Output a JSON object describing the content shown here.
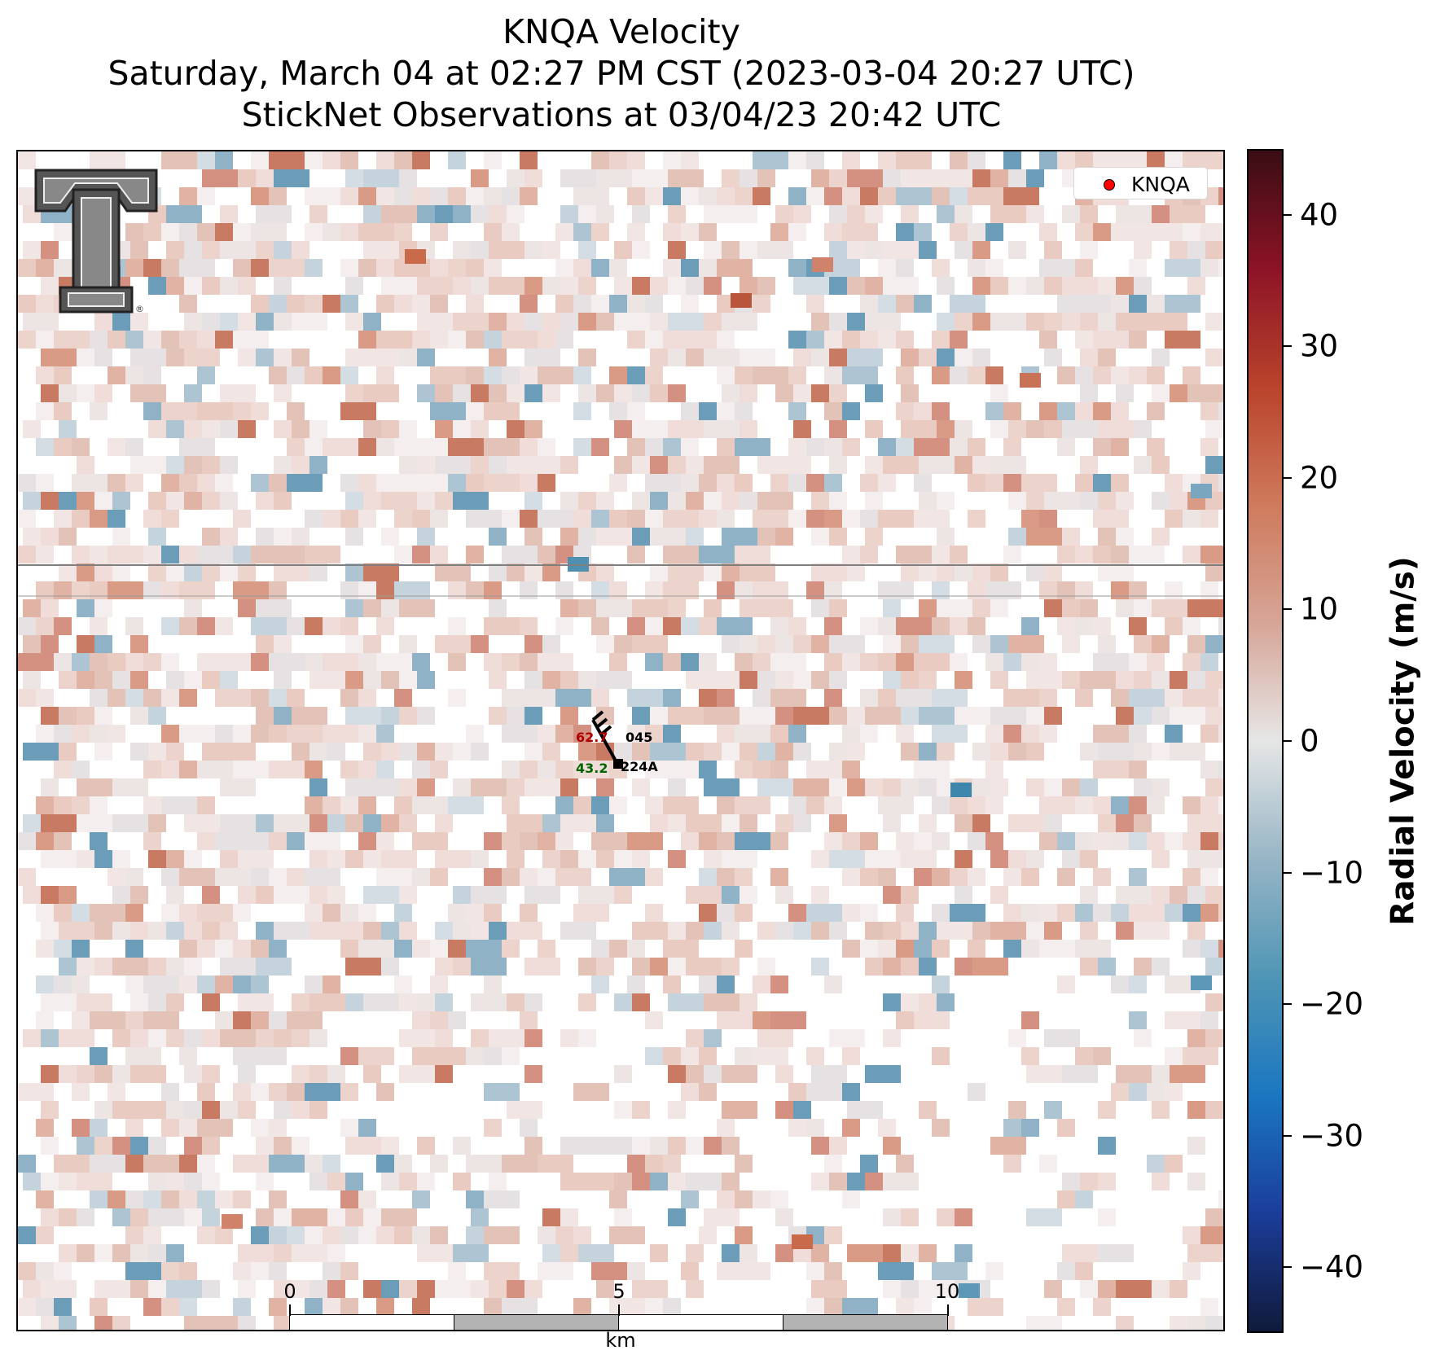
{
  "title": {
    "line1": "KNQA Velocity",
    "line2": "Saturday, March 04 at 02:27 PM CST (2023-03-04 20:27 UTC)",
    "line3": "StickNet Observations at 03/04/23 20:42 UTC"
  },
  "legend": {
    "label": "KNQA",
    "marker_color": "#ff0000"
  },
  "logo": {
    "name": "Texas Tech double-T logo",
    "mark": "®"
  },
  "scale_bar": {
    "ticks": [
      "0",
      "5",
      "10"
    ],
    "unit": "km"
  },
  "stations": [
    {
      "id": "045",
      "value": "62.7",
      "value_color": "#b00000"
    },
    {
      "id": "224A",
      "value": "43.2",
      "value_color": "#006400"
    }
  ],
  "colorbar": {
    "label": "Radial Velocity (m/s)",
    "min": -45,
    "max": 45,
    "ticks": [
      "40",
      "30",
      "20",
      "10",
      "0",
      "−10",
      "−20",
      "−30",
      "−40"
    ],
    "colors": [
      "#101a3a",
      "#1b3d9a",
      "#1a77c0",
      "#4f95b5",
      "#97b5c5",
      "#e6e6e6",
      "#d6a597",
      "#cf7a5c",
      "#b9432b",
      "#8c1326",
      "#3a0d14"
    ]
  }
}
